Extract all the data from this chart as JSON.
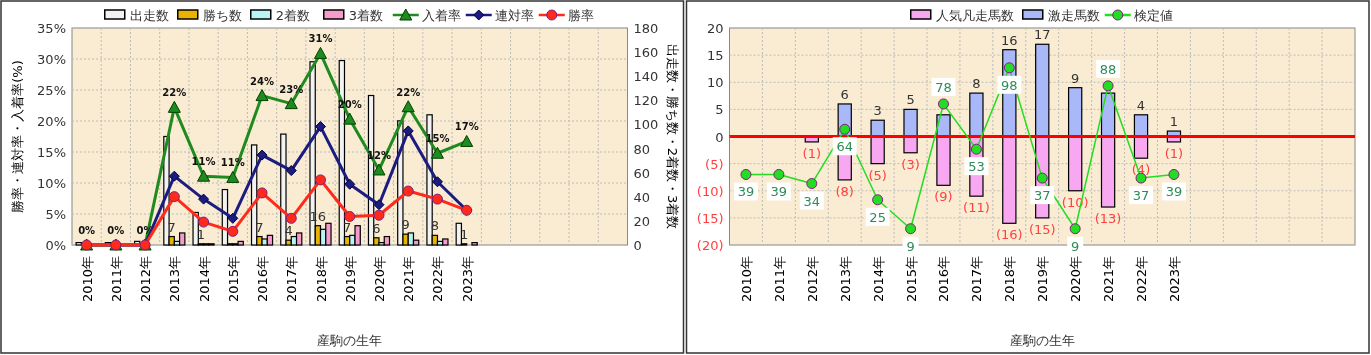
{
  "chart_data": [
    {
      "type": "bar",
      "xlabel": "産駒の生年",
      "ylabel": "勝率・連対率・入着率(%)",
      "y2label": "出走数・勝ち数・2着数・3着数",
      "categories": [
        "2010年",
        "2011年",
        "2012年",
        "2013年",
        "2014年",
        "2015年",
        "2016年",
        "2017年",
        "2018年",
        "2019年",
        "2020年",
        "2021年",
        "2022年",
        "2023年",
        null,
        null,
        null,
        null,
        null
      ],
      "ylim": [
        0,
        35
      ],
      "yticks": [
        {
          "value": 0,
          "label": "0%"
        },
        {
          "value": 5,
          "label": "5%"
        },
        {
          "value": 10,
          "label": "10%"
        },
        {
          "value": 15,
          "label": "15%"
        },
        {
          "value": 20,
          "label": "20%"
        },
        {
          "value": 25,
          "label": "25%"
        },
        {
          "value": 30,
          "label": "30%"
        },
        {
          "value": 35,
          "label": "35%"
        }
      ],
      "y2lim": [
        0,
        180
      ],
      "y2ticks": [
        0,
        20,
        40,
        60,
        80,
        100,
        120,
        140,
        160,
        180
      ],
      "grid": true,
      "legend": "top",
      "series": [
        {
          "name": "出走数",
          "color": "#f2f2f2",
          "axis": "y2",
          "values": [
            2,
            2,
            3,
            90,
            27,
            46,
            83,
            92,
            152,
            153,
            124,
            103,
            108,
            18,
            null,
            null,
            null,
            null,
            null
          ]
        },
        {
          "name": "勝ち数",
          "color": "#e8b400",
          "axis": "y2",
          "values": [
            0,
            0,
            0,
            7,
            1,
            1,
            7,
            4,
            16,
            7,
            6,
            9,
            8,
            1,
            null,
            null,
            null,
            null,
            null
          ],
          "value_labels": [
            null,
            null,
            null,
            "7",
            "1",
            null,
            "7",
            "4",
            "16",
            "7",
            "6",
            "9",
            "8",
            "1",
            null,
            null,
            null,
            null,
            null
          ]
        },
        {
          "name": "2着数",
          "color": "#b8f4f4",
          "axis": "y2",
          "values": [
            0,
            0,
            0,
            3,
            1,
            1,
            5,
            7,
            13,
            8,
            2,
            10,
            3,
            0,
            null,
            null,
            null,
            null,
            null
          ]
        },
        {
          "name": "3着数",
          "color": "#f49ccc",
          "axis": "y2",
          "values": [
            0,
            0,
            0,
            10,
            1,
            3,
            8,
            10,
            18,
            16,
            7,
            4,
            5,
            2,
            null,
            null,
            null,
            null,
            null
          ]
        },
        {
          "name": "入着率",
          "type": "line",
          "color": "#1f8a1f",
          "marker": "triangle",
          "values": [
            0,
            0,
            0,
            22.2,
            11.1,
            10.9,
            24.1,
            22.8,
            30.9,
            20.3,
            12.1,
            22.3,
            14.8,
            16.7,
            null,
            null,
            null,
            null,
            null
          ],
          "value_labels": [
            "0%",
            "0%",
            "0%",
            "22%",
            "11%",
            "11%",
            "24%",
            "23%",
            "31%",
            "20%",
            "12%",
            "22%",
            "15%",
            "17%",
            null,
            null,
            null,
            null,
            null
          ]
        },
        {
          "name": "連対率",
          "type": "line",
          "color": "#1c1c80",
          "marker": "diamond",
          "values": [
            0,
            0,
            0,
            11.1,
            7.4,
            4.3,
            14.5,
            12.0,
            19.1,
            9.8,
            6.5,
            18.4,
            10.2,
            5.6,
            null,
            null,
            null,
            null,
            null
          ]
        },
        {
          "name": "勝率",
          "type": "line",
          "color": "#ff2a1a",
          "marker": "circle",
          "values": [
            0,
            0,
            0,
            7.8,
            3.7,
            2.2,
            8.4,
            4.3,
            10.5,
            4.6,
            4.8,
            8.7,
            7.4,
            5.6,
            null,
            null,
            null,
            null,
            null
          ]
        }
      ]
    },
    {
      "type": "bar",
      "stacked": true,
      "xlabel": "産駒の生年",
      "categories": [
        "2010年",
        "2011年",
        "2012年",
        "2013年",
        "2014年",
        "2015年",
        "2016年",
        "2017年",
        "2018年",
        "2019年",
        "2020年",
        "2021年",
        "2022年",
        "2023年",
        null,
        null,
        null,
        null,
        null
      ],
      "ylim": [
        -20,
        20
      ],
      "yticks": [
        {
          "value": -20,
          "label": "(20)"
        },
        {
          "value": -15,
          "label": "(15)"
        },
        {
          "value": -10,
          "label": "(10)"
        },
        {
          "value": -5,
          "label": "(5)"
        },
        0,
        5,
        10,
        15,
        20
      ],
      "y2lim": [
        0,
        120
      ],
      "grid": true,
      "legend": "top",
      "ref_lines": [
        {
          "axis": "y",
          "value": 0,
          "color": "#ff0000"
        }
      ],
      "series": [
        {
          "name": "人気凡走馬数",
          "color": "#f8a8f0",
          "values": [
            0,
            0,
            -1,
            -8,
            -5,
            -3,
            -9,
            -11,
            -16,
            -15,
            -10,
            -13,
            -4,
            -1,
            null,
            null,
            null,
            null,
            null
          ],
          "value_labels": [
            null,
            null,
            "(1)",
            "(8)",
            "(5)",
            "(3)",
            "(9)",
            "(11)",
            "(16)",
            "(15)",
            "(10)",
            "(13)",
            "(4)",
            "(1)",
            null,
            null,
            null,
            null,
            null
          ]
        },
        {
          "name": "激走馬数",
          "color": "#a8b8f8",
          "values": [
            0,
            0,
            0,
            6,
            3,
            5,
            4,
            8,
            16,
            17,
            9,
            8,
            4,
            1,
            null,
            null,
            null,
            null,
            null
          ],
          "value_labels": [
            null,
            null,
            null,
            "6",
            "3",
            "5",
            null,
            "8",
            "16",
            "17",
            "9",
            null,
            "4",
            "1",
            null,
            null,
            null,
            null,
            null
          ]
        },
        {
          "name": "検定値",
          "type": "line",
          "axis": "y2",
          "color": "#22dd22",
          "marker": "circle",
          "values": [
            39,
            39,
            34,
            64,
            25,
            9,
            78,
            53,
            98,
            37,
            9,
            88,
            37,
            39,
            null,
            null,
            null,
            null,
            null
          ],
          "value_labels": [
            "39",
            "39",
            "34",
            "64",
            "25",
            "9",
            "78",
            "53",
            "98",
            "37",
            "9",
            "88",
            "37",
            "39",
            null,
            null,
            null,
            null,
            null
          ]
        }
      ]
    }
  ]
}
